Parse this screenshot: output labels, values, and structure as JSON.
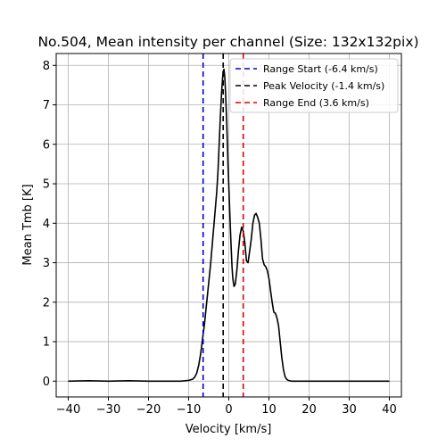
{
  "chart_data": {
    "type": "line",
    "title": "No.504, Mean intensity per channel (Size: 132x132pix)",
    "xlabel": "Velocity [km/s]",
    "ylabel": "Mean Tmb [K]",
    "xlim": [
      -43,
      43
    ],
    "ylim": [
      -0.4,
      8.3
    ],
    "xticks": [
      -40,
      -30,
      -20,
      -10,
      0,
      10,
      20,
      30,
      40
    ],
    "xtick_labels": [
      "−40",
      "−30",
      "−20",
      "−10",
      "0",
      "10",
      "20",
      "30",
      "40"
    ],
    "yticks": [
      0,
      1,
      2,
      3,
      4,
      5,
      6,
      7,
      8
    ],
    "ytick_labels": [
      "0",
      "1",
      "2",
      "3",
      "4",
      "5",
      "6",
      "7",
      "8"
    ],
    "grid": true,
    "legend_position": "top-right",
    "series": [
      {
        "color": "#000000",
        "x": [
          -40,
          -35,
          -30,
          -25,
          -20,
          -15,
          -12,
          -10,
          -9,
          -8.5,
          -8,
          -7.5,
          -7,
          -6.5,
          -6,
          -5.5,
          -5,
          -4.5,
          -4,
          -3.5,
          -3,
          -2.7,
          -2.4,
          -2.1,
          -1.8,
          -1.6,
          -1.4,
          -1.2,
          -1.0,
          -0.8,
          -0.5,
          -0.2,
          0.2,
          0.5,
          0.8,
          1.0,
          1.3,
          1.6,
          2.0,
          2.4,
          2.8,
          3.2,
          3.6,
          4.0,
          4.4,
          4.8,
          5.2,
          5.6,
          6.0,
          6.4,
          6.8,
          7.2,
          7.6,
          8.0,
          8.4,
          8.8,
          9.2,
          9.6,
          10.0,
          10.4,
          10.8,
          11.2,
          11.6,
          12.0,
          12.4,
          12.8,
          13.2,
          13.6,
          14.0,
          14.4,
          14.8,
          15.2,
          15.6,
          16.0,
          17,
          18,
          20,
          25,
          30,
          35,
          40
        ],
        "y": [
          0.0,
          0.01,
          0.0,
          0.01,
          0.0,
          0.0,
          0.0,
          0.02,
          0.05,
          0.1,
          0.2,
          0.4,
          0.7,
          1.1,
          1.5,
          2.0,
          2.5,
          3.0,
          3.6,
          4.2,
          4.8,
          5.3,
          6.0,
          6.7,
          7.3,
          7.6,
          7.85,
          7.9,
          7.7,
          7.3,
          6.5,
          5.5,
          4.4,
          3.6,
          2.9,
          2.6,
          2.4,
          2.45,
          2.8,
          3.3,
          3.7,
          3.9,
          3.8,
          3.5,
          3.05,
          3.0,
          3.3,
          3.6,
          4.0,
          4.2,
          4.25,
          4.15,
          4.0,
          3.6,
          3.1,
          2.95,
          2.9,
          2.8,
          2.6,
          2.3,
          2.0,
          1.75,
          1.72,
          1.6,
          1.4,
          1.0,
          0.6,
          0.3,
          0.12,
          0.05,
          0.02,
          0.01,
          0.0,
          0.0,
          0.0,
          0.0,
          0.0,
          0.0,
          0.0,
          0.0,
          0.0
        ]
      }
    ],
    "vlines": [
      {
        "x": -6.4,
        "color": "#0000cc",
        "label": "Range Start (-6.4 km/s)"
      },
      {
        "x": -1.4,
        "color": "#000000",
        "label": "Peak Velocity (-1.4 km/s)"
      },
      {
        "x": 3.6,
        "color": "#dd0000",
        "label": "Range End (3.6 km/s)"
      }
    ]
  }
}
